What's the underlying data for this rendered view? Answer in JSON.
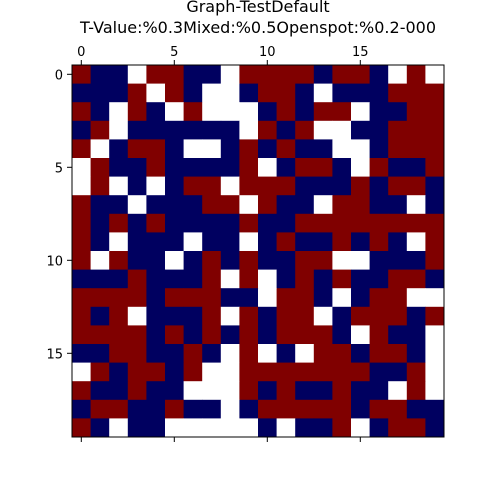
{
  "chart_data": {
    "type": "heatmap",
    "title": "Graph-TestDefault",
    "subtitle": "T-Value:%0.3Mixed:%0.5Openspot:%0.2-000",
    "xlabel": "",
    "ylabel": "",
    "xticks": [
      0,
      5,
      10,
      15
    ],
    "yticks": [
      0,
      5,
      10,
      15
    ],
    "x_axis_position": "top",
    "grid": false,
    "legend": "none",
    "xlim": [
      -0.5,
      19.5
    ],
    "ylim": [
      19.5,
      -0.5
    ],
    "legend_values": {
      "0": "white",
      "1": "navy",
      "2": "dark red"
    },
    "colors": {
      "0": "#ffffff",
      "1": "#000060",
      "2": "#800000"
    },
    "grid_values": [
      [
        2,
        1,
        1,
        0,
        2,
        2,
        1,
        1,
        0,
        2,
        2,
        2,
        2,
        1,
        2,
        2,
        1,
        0,
        2,
        0
      ],
      [
        1,
        1,
        1,
        2,
        0,
        2,
        1,
        0,
        0,
        1,
        2,
        2,
        1,
        0,
        1,
        1,
        1,
        2,
        2,
        2
      ],
      [
        2,
        1,
        0,
        2,
        1,
        0,
        2,
        0,
        0,
        0,
        1,
        2,
        1,
        2,
        2,
        0,
        1,
        1,
        2,
        2
      ],
      [
        1,
        2,
        0,
        1,
        1,
        1,
        1,
        1,
        1,
        0,
        2,
        1,
        2,
        0,
        0,
        1,
        1,
        2,
        2,
        2
      ],
      [
        2,
        0,
        1,
        2,
        2,
        1,
        0,
        0,
        1,
        2,
        1,
        2,
        1,
        1,
        0,
        0,
        1,
        2,
        2,
        2
      ],
      [
        0,
        2,
        1,
        1,
        2,
        1,
        1,
        1,
        1,
        2,
        0,
        1,
        2,
        2,
        1,
        0,
        2,
        1,
        1,
        2
      ],
      [
        0,
        2,
        0,
        1,
        0,
        1,
        2,
        2,
        0,
        2,
        2,
        2,
        1,
        1,
        1,
        2,
        1,
        2,
        2,
        1
      ],
      [
        2,
        1,
        1,
        0,
        1,
        1,
        1,
        2,
        2,
        0,
        2,
        1,
        1,
        0,
        2,
        2,
        1,
        1,
        0,
        1
      ],
      [
        2,
        1,
        2,
        1,
        2,
        1,
        1,
        1,
        1,
        2,
        1,
        1,
        2,
        2,
        2,
        2,
        2,
        2,
        2,
        2
      ],
      [
        2,
        1,
        0,
        1,
        1,
        1,
        0,
        1,
        1,
        0,
        1,
        2,
        1,
        1,
        2,
        1,
        2,
        1,
        0,
        2
      ],
      [
        2,
        0,
        2,
        1,
        1,
        0,
        1,
        2,
        1,
        2,
        1,
        1,
        2,
        2,
        0,
        0,
        1,
        1,
        1,
        2
      ],
      [
        1,
        1,
        1,
        2,
        1,
        1,
        1,
        2,
        0,
        2,
        0,
        1,
        2,
        1,
        2,
        1,
        1,
        2,
        2,
        1
      ],
      [
        2,
        2,
        2,
        2,
        1,
        2,
        2,
        2,
        1,
        1,
        0,
        2,
        2,
        1,
        0,
        1,
        2,
        2,
        0,
        0
      ],
      [
        2,
        1,
        2,
        0,
        1,
        1,
        1,
        2,
        0,
        2,
        1,
        2,
        2,
        0,
        1,
        2,
        2,
        2,
        1,
        2
      ],
      [
        2,
        2,
        2,
        2,
        1,
        2,
        1,
        2,
        1,
        2,
        1,
        2,
        2,
        2,
        1,
        0,
        2,
        1,
        1,
        0
      ],
      [
        1,
        1,
        2,
        2,
        1,
        1,
        2,
        1,
        0,
        2,
        0,
        1,
        0,
        2,
        2,
        1,
        2,
        2,
        1,
        0
      ],
      [
        0,
        2,
        1,
        2,
        2,
        1,
        2,
        0,
        0,
        2,
        2,
        2,
        2,
        2,
        2,
        2,
        1,
        1,
        2,
        0
      ],
      [
        2,
        1,
        1,
        2,
        1,
        1,
        0,
        0,
        0,
        2,
        1,
        2,
        1,
        1,
        2,
        1,
        1,
        0,
        2,
        0
      ],
      [
        1,
        2,
        2,
        1,
        1,
        2,
        1,
        1,
        0,
        1,
        2,
        2,
        2,
        2,
        2,
        1,
        2,
        2,
        1,
        1
      ],
      [
        2,
        1,
        0,
        1,
        1,
        0,
        0,
        0,
        0,
        0,
        1,
        0,
        1,
        1,
        2,
        0,
        1,
        2,
        2,
        1
      ]
    ]
  }
}
